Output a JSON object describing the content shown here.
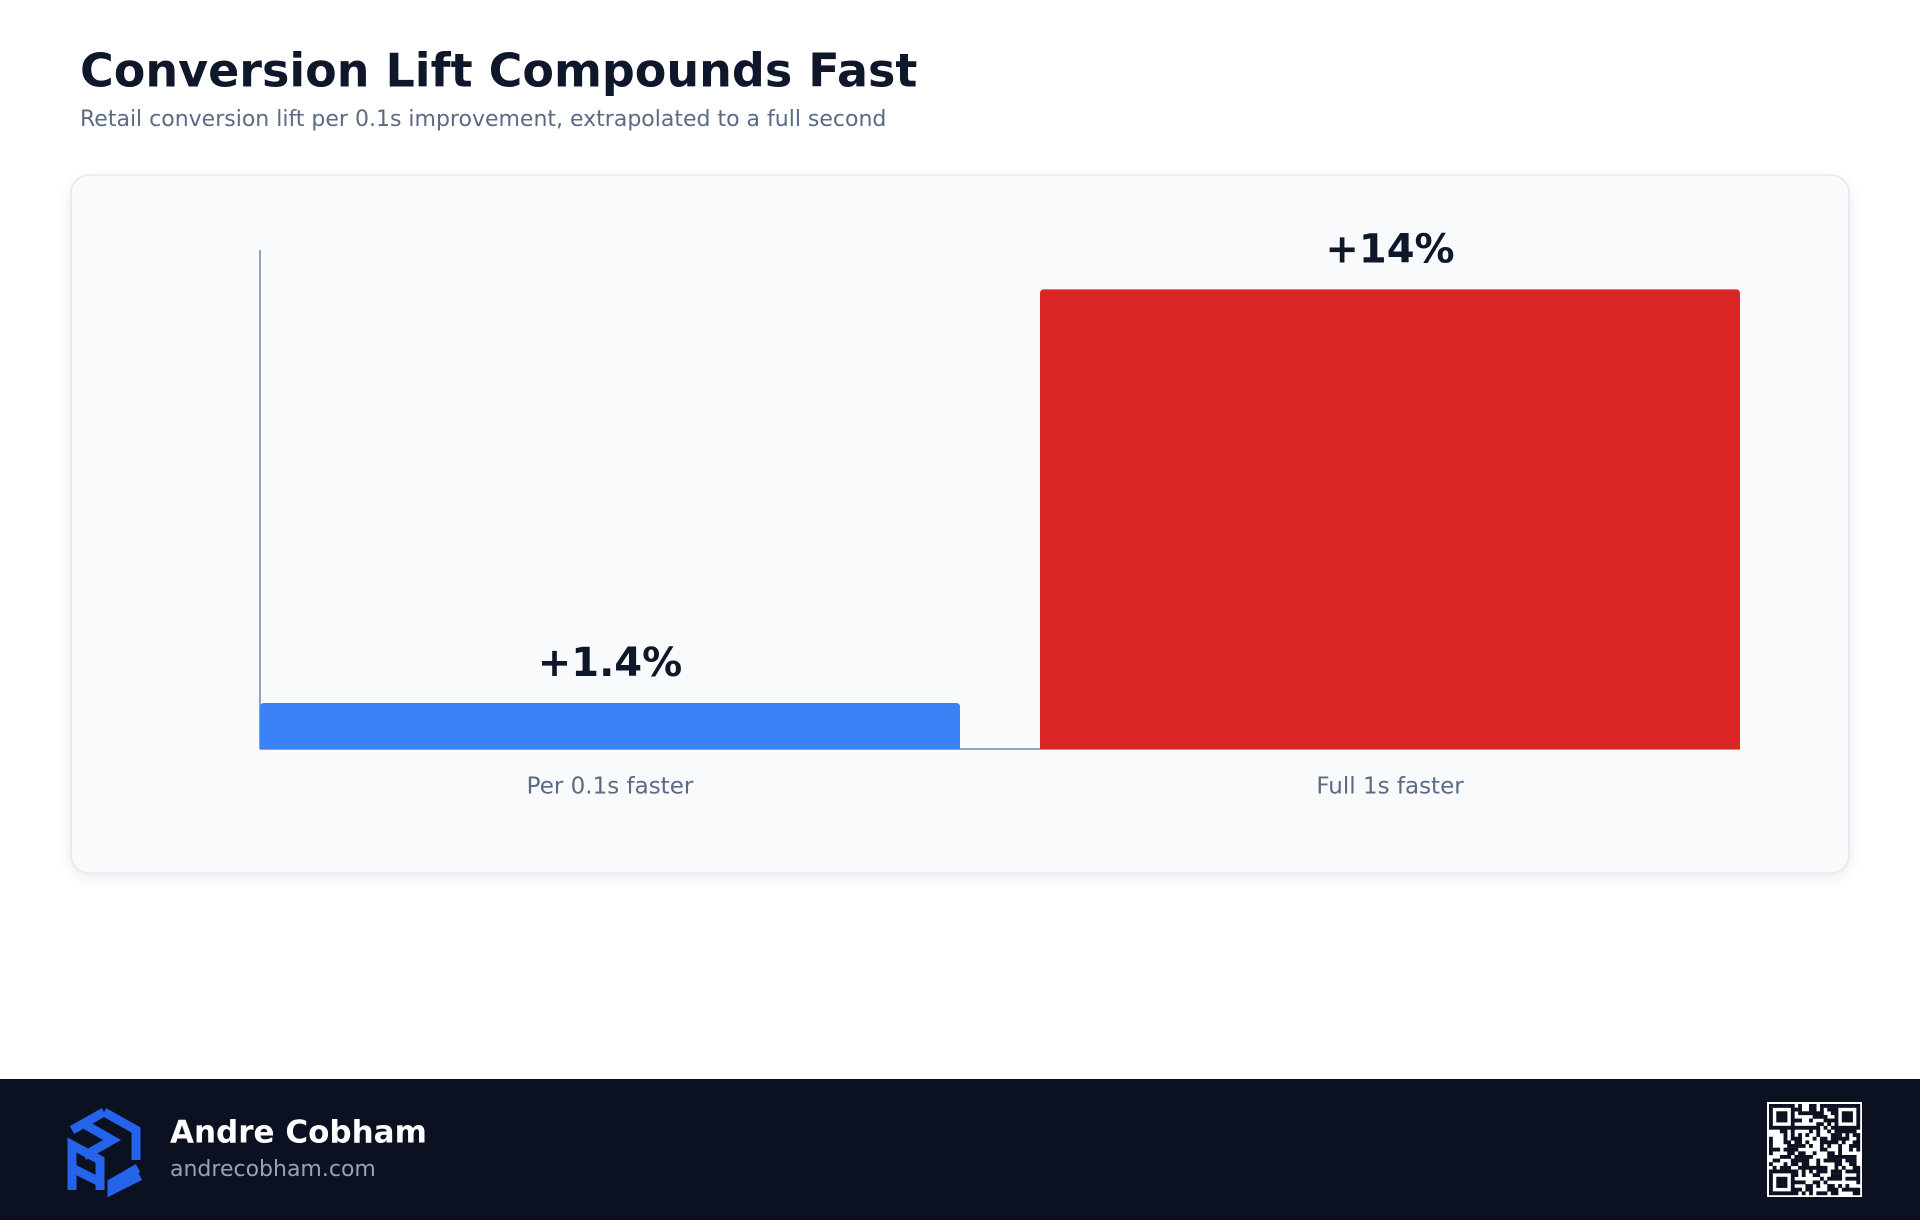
{
  "chart_data": {
    "type": "bar",
    "title": "Conversion Lift Compounds Fast",
    "subtitle": "Retail conversion lift per 0.1s improvement, extrapolated to a full second",
    "categories": [
      "Per 0.1s faster",
      "Full 1s faster"
    ],
    "values": [
      1.4,
      14
    ],
    "value_labels": [
      "+1.4%",
      "+14%"
    ],
    "colors": [
      "#3b82f6",
      "#dc2626"
    ],
    "ylim": [
      0,
      15.2
    ]
  },
  "footer": {
    "name": "Andre Cobham",
    "url": "andrecobham.com"
  }
}
